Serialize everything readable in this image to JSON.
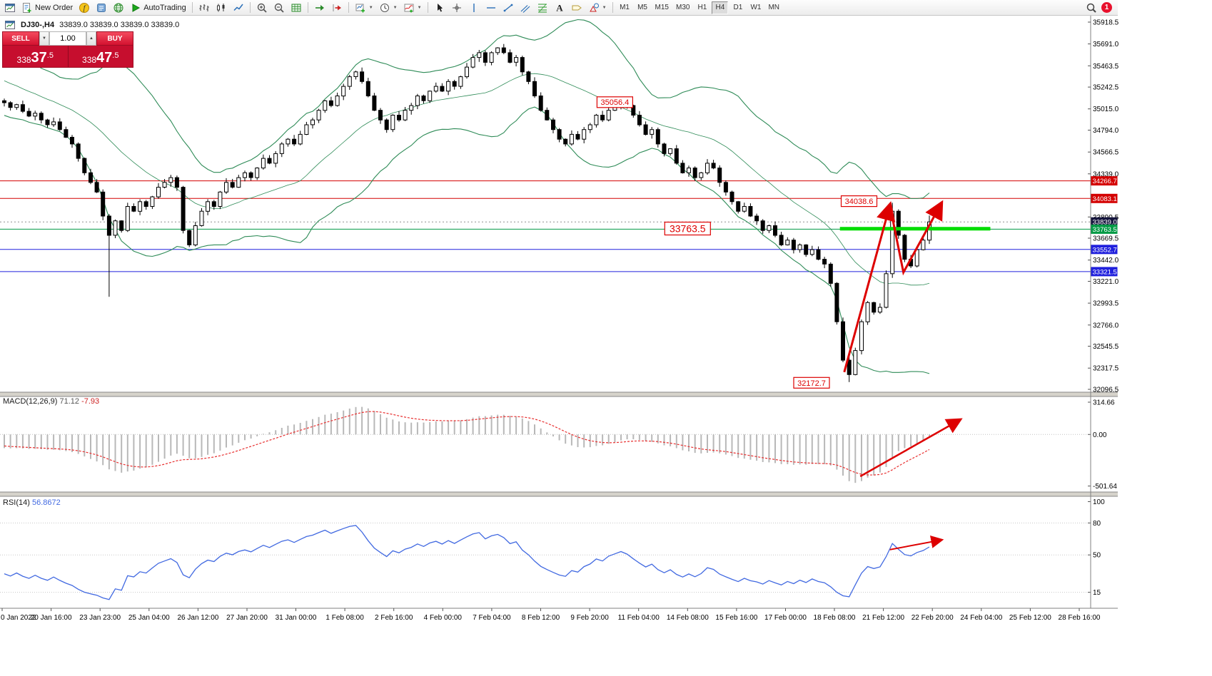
{
  "toolbar": {
    "notification_count": "1",
    "caret_glyph": "▼",
    "active_timeframe": "H4",
    "timeframes": [
      "M1",
      "M5",
      "M15",
      "M30",
      "H1",
      "H4",
      "D1",
      "W1",
      "MN"
    ],
    "groups": [
      {
        "items": [
          {
            "name": "chart-window",
            "icon": "window"
          },
          {
            "name": "new-order",
            "icon": "doc-plus",
            "label": "New Order"
          },
          {
            "name": "expert-advisors",
            "icon": "expert"
          },
          {
            "name": "scripts",
            "icon": "script"
          },
          {
            "name": "market-watch",
            "icon": "globe"
          },
          {
            "name": "autotrading",
            "icon": "play",
            "label": "AutoTrading"
          }
        ]
      },
      {
        "items": [
          {
            "name": "bar-chart-mode",
            "icon": "bars"
          },
          {
            "name": "candlestick-mode",
            "icon": "candles"
          },
          {
            "name": "line-chart-mode",
            "icon": "line"
          }
        ]
      },
      {
        "items": [
          {
            "name": "zoom-in",
            "icon": "zoom-in"
          },
          {
            "name": "zoom-out",
            "icon": "zoom-out"
          },
          {
            "name": "tile-windows",
            "icon": "grid"
          }
        ]
      },
      {
        "items": [
          {
            "name": "auto-scroll",
            "icon": "autoscroll"
          },
          {
            "name": "chart-shift",
            "icon": "shift"
          }
        ]
      },
      {
        "items": [
          {
            "name": "new-chart",
            "icon": "new-chart",
            "caret": true
          },
          {
            "name": "profiles",
            "icon": "clock",
            "caret": true
          },
          {
            "name": "indicators-list",
            "icon": "indicator",
            "caret": true
          }
        ]
      },
      {
        "items": [
          {
            "name": "cursor",
            "icon": "cursor"
          },
          {
            "name": "crosshair",
            "icon": "crosshair"
          },
          {
            "name": "vertical-line",
            "icon": "vline"
          },
          {
            "name": "horizontal-line",
            "icon": "hline"
          },
          {
            "name": "trendline",
            "icon": "trend"
          },
          {
            "name": "equidistant-channel",
            "icon": "channel"
          },
          {
            "name": "fibonacci",
            "icon": "fibo"
          },
          {
            "name": "text",
            "icon": "textA"
          },
          {
            "name": "text-label",
            "icon": "label"
          },
          {
            "name": "shapes",
            "icon": "shapes",
            "caret": true
          }
        ]
      }
    ]
  },
  "chart_header": {
    "symbol": "DJ30-,H4",
    "ohlc": "33839.0 33839.0 33839.0 33839.0"
  },
  "trade_panel": {
    "sell_label": "SELL",
    "buy_label": "BUY",
    "volume": "1.00",
    "spinner_down": "▼",
    "spinner_up": "▲",
    "bid": "33837.5",
    "ask": "33847.5",
    "bid_parts": {
      "prefix": "338",
      "big": "37",
      "pip": ".5"
    },
    "ask_parts": {
      "prefix": "338",
      "big": "47",
      "pip": ".5"
    }
  },
  "indicators": {
    "macd": {
      "name": "MACD(12,26,9)",
      "value_main": "71.12",
      "value_signal": "-7.93"
    },
    "rsi": {
      "name": "RSI(14)",
      "value": "56.8672"
    }
  },
  "chart_data": [
    {
      "type": "candlestick",
      "symbol": "DJ30-",
      "timeframe": "H4",
      "first_open": 35100,
      "candle_up_color": "#ffffff",
      "candle_down_color": "#000000",
      "outline_color": "#000000",
      "bollinger": {
        "period": 20,
        "deviation": 2,
        "color": "#2e8b57"
      },
      "annotation_color": "#dd0000",
      "warmup_closes": [
        35600,
        35650,
        35700,
        35620,
        35680,
        35720,
        35650,
        35600,
        35550,
        35600,
        35500,
        35450,
        35500,
        35400,
        35350,
        35400,
        35300,
        35250,
        35300,
        35200,
        35150,
        35200,
        35100,
        35050,
        35100,
        35080
      ],
      "closes": [
        35080,
        35030,
        35060,
        34990,
        34940,
        34970,
        34900,
        34850,
        34880,
        34800,
        34720,
        34650,
        34500,
        34350,
        34250,
        34150,
        33900,
        33700,
        33850,
        33750,
        34000,
        33950,
        34050,
        34000,
        34100,
        34200,
        34250,
        34300,
        34200,
        33750,
        33600,
        33800,
        33950,
        34050,
        34000,
        34150,
        34250,
        34200,
        34300,
        34350,
        34300,
        34400,
        34500,
        34450,
        34550,
        34650,
        34700,
        34650,
        34750,
        34850,
        34900,
        35000,
        35100,
        35050,
        35150,
        35250,
        35350,
        35400,
        35300,
        35150,
        35000,
        34900,
        34800,
        34950,
        34900,
        35000,
        35050,
        35150,
        35100,
        35200,
        35250,
        35200,
        35300,
        35250,
        35350,
        35450,
        35550,
        35600,
        35500,
        35600,
        35650,
        35600,
        35500,
        35550,
        35400,
        35300,
        35150,
        35000,
        34900,
        34800,
        34700,
        34650,
        34750,
        34700,
        34800,
        34850,
        34950,
        34900,
        35000,
        35050,
        35100,
        35050,
        34950,
        34850,
        34750,
        34800,
        34650,
        34550,
        34600,
        34450,
        34350,
        34400,
        34300,
        34350,
        34450,
        34400,
        34250,
        34150,
        34050,
        33950,
        34000,
        33900,
        33850,
        33750,
        33800,
        33700,
        33600,
        33650,
        33550,
        33600,
        33500,
        33550,
        33450,
        33400,
        33200,
        32800,
        32400,
        32250,
        32500,
        32800,
        33000,
        32900,
        32950,
        33300,
        33950,
        33700,
        33450,
        33380,
        33550,
        33650,
        33839
      ],
      "wick_overrides": {
        "17": {
          "low": 33060
        },
        "137": {
          "low": 32172.7
        },
        "144": {
          "high": 34038.6
        },
        "150": {
          "high": 33905
        }
      },
      "y_axis_ticks": [
        "35918.5",
        "35691.0",
        "35463.5",
        "35242.5",
        "35015.0",
        "34794.0",
        "34566.5",
        "34339.0",
        "33890.5",
        "33669.5",
        "33442.0",
        "33221.0",
        "32993.5",
        "32766.0",
        "32545.5",
        "32317.5",
        "32096.5"
      ],
      "price_lines": [
        {
          "price": 34266.7,
          "label": "34266.7",
          "color": "#d40000",
          "label_bg": "#d40000",
          "style": "solid"
        },
        {
          "price": 34083.1,
          "label": "34083.1",
          "color": "#d40000",
          "label_bg": "#d40000",
          "style": "solid"
        },
        {
          "price": 33839.0,
          "label": "33839.0",
          "color": "#909090",
          "label_bg": "#14143c",
          "style": "dotted"
        },
        {
          "price": 33763.5,
          "label": "33763.5",
          "color": "#009a44",
          "label_bg": "#009a44",
          "style": "solid"
        },
        {
          "price": 33552.7,
          "label": "33552.7",
          "color": "#2020dd",
          "label_bg": "#2020dd",
          "style": "solid"
        },
        {
          "price": 33321.5,
          "label": "33321.5",
          "color": "#2020dd",
          "label_bg": "#2020dd",
          "style": "solid"
        }
      ],
      "highlight_segment": {
        "price": 33768,
        "i_start": 135.5,
        "i_end": 159.9,
        "color": "#00dd00",
        "width": 5
      },
      "annotations": [
        {
          "text": "35056.4",
          "i": 99,
          "price": 35085,
          "font": 11
        },
        {
          "text": "34038.6",
          "i": 138.6,
          "price": 34055,
          "font": 11
        },
        {
          "text": "33763.5",
          "i": 110.8,
          "price": 33770,
          "font": 14
        },
        {
          "text": "32172.7",
          "i": 130.9,
          "price": 32165,
          "font": 11
        }
      ],
      "trend_arrows": [
        {
          "points": [
            [
              136.2,
              32276
            ],
            [
              143.6,
              34012
            ]
          ]
        },
        {
          "points": [
            [
              143.6,
              34012
            ],
            [
              145.8,
              33314
            ],
            [
              151.9,
              34027
            ]
          ]
        }
      ],
      "x_labels": [
        "0 Jan 2022",
        "20 Jan 16:00",
        "23 Jan 23:00",
        "25 Jan 04:00",
        "26 Jan 12:00",
        "27 Jan 20:00",
        "31 Jan 00:00",
        "1 Feb 08:00",
        "2 Feb 16:00",
        "4 Feb 00:00",
        "7 Feb 04:00",
        "8 Feb 12:00",
        "9 Feb 20:00",
        "11 Feb 04:00",
        "14 Feb 08:00",
        "15 Feb 16:00",
        "17 Feb 00:00",
        "18 Feb 08:00",
        "21 Feb 12:00",
        "22 Feb 20:00",
        "24 Feb 04:00",
        "25 Feb 12:00",
        "28 Feb 16:00"
      ]
    },
    {
      "type": "macd",
      "fast": 12,
      "slow": 26,
      "signal": 9,
      "histogram_color": "#b8b8b8",
      "signal_color": "#e83030",
      "scale_ticks": [
        "314.66",
        "0.00",
        "-501.64"
      ],
      "arrow": {
        "from": [
          138.8,
          -407
        ],
        "to": [
          154.9,
          141
        ]
      }
    },
    {
      "type": "rsi",
      "period": 14,
      "line_color": "#4169e1",
      "scale_ticks": [
        "100",
        "80",
        "50",
        "15"
      ],
      "levels": [
        80,
        50,
        15
      ],
      "arrow": {
        "from": [
          143.6,
          55
        ],
        "to": [
          151.9,
          64
        ]
      }
    }
  ]
}
